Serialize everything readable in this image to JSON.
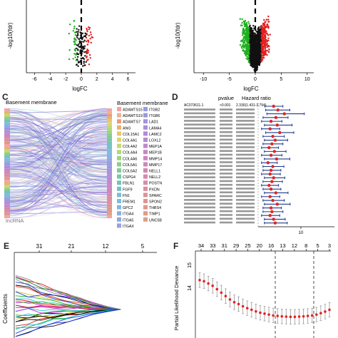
{
  "panels": {
    "C": "C",
    "D": "D",
    "E": "E",
    "F": "F"
  },
  "chart_data": [
    {
      "type": "scatter",
      "panel": "A",
      "xlabel": "logFC",
      "ylabel": "-log10(fdr)",
      "xticks": [
        -6,
        -4,
        -2,
        0,
        2,
        4,
        6
      ],
      "xlim": [
        -6.5,
        6.5
      ],
      "ylim": [
        0,
        3.2
      ],
      "threshold_x": 0,
      "colors": {
        "up": "#e32020",
        "down": "#1fae1f",
        "ns": "#111111"
      }
    },
    {
      "type": "scatter",
      "panel": "B",
      "xlabel": "logFC",
      "ylabel": "-log10(fdr)",
      "xticks": [
        -10,
        -5,
        0,
        5,
        10
      ],
      "xlim": [
        -11,
        11
      ],
      "ylim": [
        0,
        3.4
      ],
      "threshold_x": 0,
      "colors": {
        "up": "#e32020",
        "down": "#1fae1f",
        "ns": "#111111"
      }
    },
    {
      "type": "sankey",
      "panel": "C",
      "left_label": "lncRNA",
      "right_label": "Basement membrane",
      "legend_title": "Basement membrane",
      "legend_col1": [
        "ADAMTS15",
        "ADAMTS19",
        "ADAMTS7",
        "ANG",
        "COL15A1",
        "COL4A1",
        "COL4A2",
        "COL4A4",
        "COL4A6",
        "COL5A1",
        "COL6A2",
        "CSPG4",
        "FBLN1",
        "FGF9",
        "FN1",
        "FREM1",
        "GPC2",
        "ITGA4",
        "ITGA5",
        "ITGAX"
      ],
      "legend_col2": [
        "ITGB2",
        "ITGB6",
        "LAD1",
        "LAMA4",
        "LAMC2",
        "LOXL2",
        "MEP1A",
        "MEP1B",
        "MMP14",
        "MMP17",
        "NELL1",
        "NELL2",
        "POSTN",
        "PXDN",
        "SPARC",
        "SPON2",
        "THBS4",
        "TIMP1",
        "UNC5B"
      ],
      "legend_colors1": [
        "#f4a3a3",
        "#f0b28c",
        "#ec9a78",
        "#e9b26a",
        "#e8c66b",
        "#ddd56f",
        "#c8d672",
        "#b1d878",
        "#9cd57e",
        "#8ad08a",
        "#7fcb98",
        "#79c6a6",
        "#76c2b6",
        "#74c0c5",
        "#76bfd3",
        "#7cbcdd",
        "#86b6e2",
        "#8ab0e4",
        "#8ea9e3",
        "#93a2e1"
      ],
      "legend_colors2": [
        "#989ce0",
        "#9e97de",
        "#a593dc",
        "#ab90d9",
        "#b28dd6",
        "#b98ad2",
        "#bf88cd",
        "#c587c7",
        "#ca87c1",
        "#ce87ba",
        "#d288b3",
        "#d58aac",
        "#d88ca5",
        "#da8f9f",
        "#dc9298",
        "#dd9592",
        "#de988c",
        "#de9c87",
        "#dea082"
      ]
    },
    {
      "type": "forest",
      "panel": "D",
      "col_pvalue": "pvalue",
      "col_hr": "Hazard ratio",
      "first_gene": "AC073611.1",
      "first_p": "<0.001",
      "first_hr": "2.330(1.431-3.794)",
      "xtick": "10",
      "hr": [
        2.3,
        2.9,
        4.1,
        2.6,
        2.0,
        2.8,
        1.9,
        3.2,
        2.2,
        2.5,
        2.1,
        1.8,
        2.4,
        2.0,
        2.7,
        1.7,
        2.2,
        2.0,
        1.9,
        2.3,
        2.1,
        1.8,
        2.0,
        2.6,
        1.9,
        2.2,
        2.8,
        2.0,
        2.1,
        1.9,
        2.3,
        2.5
      ],
      "lo": [
        1.43,
        1.5,
        1.6,
        1.3,
        1.2,
        1.4,
        1.2,
        1.5,
        1.3,
        1.4,
        1.3,
        1.2,
        1.4,
        1.2,
        1.4,
        1.2,
        1.3,
        1.3,
        1.2,
        1.4,
        1.3,
        1.2,
        1.3,
        1.4,
        1.2,
        1.3,
        1.4,
        1.3,
        1.3,
        1.2,
        1.4,
        1.4
      ],
      "hi": [
        3.79,
        5.5,
        12,
        5.0,
        3.6,
        6.2,
        3.2,
        6.8,
        4.1,
        4.9,
        3.8,
        3.0,
        4.5,
        3.6,
        5.5,
        2.8,
        4.0,
        3.4,
        3.3,
        4.2,
        3.7,
        3.0,
        3.4,
        5.0,
        3.2,
        4.1,
        5.6,
        3.5,
        3.8,
        3.2,
        4.3,
        4.8
      ]
    },
    {
      "type": "line",
      "panel": "E",
      "ylabel": "Coefficients",
      "top_ticks": [
        "31",
        "21",
        "12",
        "5"
      ]
    },
    {
      "type": "line",
      "panel": "F",
      "ylabel": "Partial Likelihood Deviance",
      "yticks": [
        "14",
        "15"
      ],
      "top_ticks": [
        "34",
        "33",
        "31",
        "29",
        "25",
        "20",
        "16",
        "13",
        "12",
        "8",
        "5",
        "3"
      ],
      "dev": [
        14.35,
        14.3,
        14.2,
        14.1,
        13.95,
        13.8,
        13.65,
        13.5,
        13.38,
        13.3,
        13.2,
        13.12,
        13.05,
        12.98,
        12.92,
        12.88,
        12.84,
        12.8,
        12.78,
        12.76,
        12.75,
        12.74,
        12.74,
        12.75,
        12.76,
        12.78,
        12.8,
        12.84,
        12.9,
        12.97,
        13.05
      ],
      "se": 0.32
    }
  ]
}
